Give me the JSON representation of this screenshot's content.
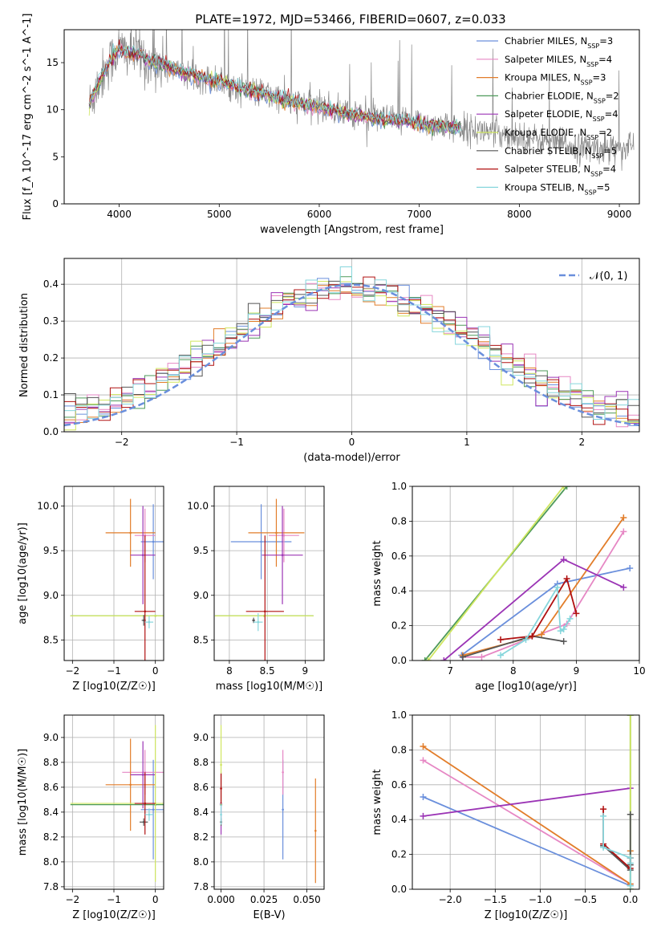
{
  "figure_title": "PLATE=1972, MJD=53466, FIBERID=0607, z=0.033",
  "colors": {
    "Chabrier MILES": "#6a8fdc",
    "Salpeter MILES": "#e687c4",
    "Kroupa MILES": "#e27d2a",
    "Chabrier ELODIE": "#4e9a5a",
    "Salpeter ELODIE": "#9b34b5",
    "Kroupa ELODIE": "#cfe65f",
    "Chabrier STELIB": "#555555",
    "Salpeter STELIB": "#b01010",
    "Kroupa STELIB": "#86d6dc",
    "gauss": "#6a8fdc"
  },
  "chart_data": [
    {
      "id": "spectrum",
      "type": "line",
      "title": "PLATE=1972, MJD=53466, FIBERID=0607, z=0.033",
      "xlabel": "wavelength [Angstrom, rest frame]",
      "ylabel": "Flux [f_λ 10^-17 erg cm^-2 s^-1 A^-1]",
      "xlim": [
        3450,
        9200
      ],
      "ylim": [
        0,
        18.5
      ],
      "xticks": [
        4000,
        5000,
        6000,
        7000,
        8000,
        9000
      ],
      "yticks": [
        0,
        5,
        10,
        15
      ],
      "grid": false,
      "legend_position": "top-right",
      "legend": [
        {
          "label": "Chabrier MILES, N",
          "ssp": "3"
        },
        {
          "label": "Salpeter MILES, N",
          "ssp": "4"
        },
        {
          "label": "Kroupa MILES, N",
          "ssp": "3"
        },
        {
          "label": "Chabrier ELODIE, N",
          "ssp": "2"
        },
        {
          "label": "Salpeter ELODIE, N",
          "ssp": "4"
        },
        {
          "label": "Kroupa ELODIE, N",
          "ssp": "2"
        },
        {
          "label": "Chabrier STELIB, N",
          "ssp": "5"
        },
        {
          "label": "Salpeter STELIB, N",
          "ssp": "4"
        },
        {
          "label": "Kroupa STELIB, N",
          "ssp": "5"
        }
      ],
      "data_curve": {
        "x": [
          3700,
          3800,
          3900,
          4000,
          4100,
          4200,
          4300,
          4400,
          4500,
          4600,
          4700,
          4800,
          4900,
          5000,
          5200,
          5400,
          5600,
          5800,
          6000,
          6200,
          6400,
          6600,
          6800,
          7000,
          7200,
          7400,
          7600,
          7800,
          8000,
          8200,
          8400,
          8600,
          8800,
          9000,
          9150
        ],
        "y": [
          10.5,
          13.0,
          15.0,
          16.5,
          16.0,
          16.0,
          15.0,
          15.0,
          14.5,
          14.0,
          13.8,
          13.6,
          13.2,
          13.0,
          12.3,
          11.8,
          11.2,
          10.7,
          10.3,
          9.8,
          9.4,
          9.0,
          8.8,
          8.6,
          8.3,
          8.0,
          7.8,
          7.5,
          7.2,
          6.8,
          6.4,
          6.0,
          5.9,
          6.0,
          6.2
        ]
      },
      "models_end_wavelength": 7420
    },
    {
      "id": "residual_histogram",
      "type": "step",
      "xlabel": "(data-model)/error",
      "ylabel": "Normed distribution",
      "xlim": [
        -2.5,
        2.5
      ],
      "ylim": [
        0,
        0.47
      ],
      "xticks": [
        -2,
        -1,
        0,
        1,
        2
      ],
      "yticks": [
        0.0,
        0.1,
        0.2,
        0.3,
        0.4
      ],
      "grid": true,
      "legend_position": "top-right",
      "legend": "𝒩(0, 1)",
      "bin_width": 0.1
    },
    {
      "id": "age_vs_Z",
      "type": "errorbar",
      "xlabel": "Z [log10(Z/Z☉)]",
      "ylabel": "age [log10(age/yr)]",
      "xlim": [
        -2.2,
        0.2
      ],
      "ylim": [
        8.27,
        10.22
      ],
      "xticks": [
        -2,
        -1,
        0
      ],
      "yticks": [
        8.5,
        9.0,
        9.5,
        10.0
      ],
      "grid": true,
      "points": [
        {
          "model": "Chabrier MILES",
          "x": -0.05,
          "xerr": 0.3,
          "y": 9.6,
          "yerr": 0.42
        },
        {
          "model": "Salpeter MILES",
          "x": -0.25,
          "xerr": 0.25,
          "y": 9.67,
          "yerr": 0.3
        },
        {
          "model": "Kroupa MILES",
          "x": -0.6,
          "xerr": 0.6,
          "y": 9.7,
          "yerr": 0.38
        },
        {
          "model": "Chabrier ELODIE",
          "x": 0.0,
          "xerr": 2.05,
          "y": 8.77,
          "yerr": 0.0
        },
        {
          "model": "Salpeter ELODIE",
          "x": -0.3,
          "xerr": 0.3,
          "y": 9.45,
          "yerr": 0.55
        },
        {
          "model": "Kroupa ELODIE",
          "x": 0.0,
          "xerr": 2.05,
          "y": 8.77,
          "yerr": 0.0
        },
        {
          "model": "Chabrier STELIB",
          "x": -0.28,
          "xerr": 0.05,
          "y": 8.72,
          "yerr": 0.06
        },
        {
          "model": "Salpeter STELIB",
          "x": -0.25,
          "xerr": 0.25,
          "y": 8.82,
          "yerr": 0.85
        },
        {
          "model": "Kroupa STELIB",
          "x": -0.15,
          "xerr": 0.1,
          "y": 8.7,
          "yerr": 0.07
        }
      ]
    },
    {
      "id": "age_vs_mass",
      "type": "errorbar",
      "xlabel": "mass [log10(M/M☉)]",
      "ylabel": "",
      "xlim": [
        7.8,
        9.25
      ],
      "ylim": [
        8.27,
        10.22
      ],
      "xticks": [
        8.0,
        8.5,
        9.0
      ],
      "yticks": [
        8.5,
        9.0,
        9.5,
        10.0
      ],
      "grid": true,
      "points": [
        {
          "model": "Chabrier MILES",
          "x": 8.42,
          "xerr": 0.4,
          "y": 9.6,
          "yerr": 0.42
        },
        {
          "model": "Salpeter MILES",
          "x": 8.72,
          "xerr": 0.2,
          "y": 9.67,
          "yerr": 0.3
        },
        {
          "model": "Kroupa MILES",
          "x": 8.62,
          "xerr": 0.37,
          "y": 9.7,
          "yerr": 0.38
        },
        {
          "model": "Chabrier ELODIE",
          "x": 8.46,
          "xerr": 0.65,
          "y": 8.77,
          "yerr": 0.0
        },
        {
          "model": "Salpeter ELODIE",
          "x": 8.7,
          "xerr": 0.27,
          "y": 9.45,
          "yerr": 0.55
        },
        {
          "model": "Kroupa ELODIE",
          "x": 8.46,
          "xerr": 0.65,
          "y": 8.77,
          "yerr": 0.0
        },
        {
          "model": "Chabrier STELIB",
          "x": 8.32,
          "xerr": 0.02,
          "y": 8.72,
          "yerr": 0.03
        },
        {
          "model": "Salpeter STELIB",
          "x": 8.47,
          "xerr": 0.25,
          "y": 8.82,
          "yerr": 0.85
        },
        {
          "model": "Kroupa STELIB",
          "x": 8.38,
          "xerr": 0.06,
          "y": 8.7,
          "yerr": 0.1
        }
      ]
    },
    {
      "id": "massweight_vs_age",
      "type": "line",
      "xlabel": "age [log10(age/yr)]",
      "ylabel": "mass weight",
      "xlim": [
        6.4,
        10.0
      ],
      "ylim": [
        0,
        1.0
      ],
      "xticks": [
        7,
        8,
        9,
        10
      ],
      "yticks": [
        0.0,
        0.2,
        0.4,
        0.6,
        0.8,
        1.0
      ],
      "grid": true,
      "series": [
        {
          "name": "Chabrier MILES",
          "x": [
            7.18,
            8.7,
            9.85
          ],
          "y": [
            0.03,
            0.44,
            0.53
          ]
        },
        {
          "name": "Salpeter MILES",
          "x": [
            7.2,
            7.5,
            8.85,
            9.75
          ],
          "y": [
            0.02,
            0.02,
            0.21,
            0.74
          ]
        },
        {
          "name": "Kroupa MILES",
          "x": [
            7.2,
            8.45,
            9.75
          ],
          "y": [
            0.03,
            0.15,
            0.82
          ]
        },
        {
          "name": "Chabrier ELODIE",
          "x": [
            6.6,
            8.85
          ],
          "y": [
            0.0,
            1.0
          ]
        },
        {
          "name": "Salpeter ELODIE",
          "x": [
            6.9,
            8.8,
            9.75
          ],
          "y": [
            0.0,
            0.58,
            0.42
          ]
        },
        {
          "name": "Kroupa ELODIE",
          "x": [
            6.65,
            8.8
          ],
          "y": [
            0.0,
            1.0
          ]
        },
        {
          "name": "Chabrier STELIB",
          "x": [
            7.2,
            8.3,
            8.8
          ],
          "y": [
            0.02,
            0.14,
            0.11
          ]
        },
        {
          "name": "Salpeter STELIB",
          "x": [
            7.8,
            8.3,
            8.85,
            9.0
          ],
          "y": [
            0.12,
            0.14,
            0.47,
            0.27
          ]
        },
        {
          "name": "Kroupa STELIB",
          "x": [
            7.8,
            8.2,
            8.7,
            8.75,
            8.8,
            8.9
          ],
          "y": [
            0.03,
            0.12,
            0.42,
            0.17,
            0.18,
            0.24
          ]
        }
      ]
    },
    {
      "id": "mass_vs_Z",
      "type": "errorbar",
      "xlabel": "Z [log10(Z/Z☉)]",
      "ylabel": "mass [log10(M/M☉)]",
      "xlim": [
        -2.2,
        0.2
      ],
      "ylim": [
        7.78,
        9.18
      ],
      "xticks": [
        -2,
        -1,
        0
      ],
      "yticks": [
        7.8,
        8.0,
        8.2,
        8.4,
        8.6,
        8.8,
        9.0
      ],
      "grid": true,
      "points": [
        {
          "model": "Chabrier MILES",
          "x": -0.05,
          "xerr": 0.3,
          "y": 8.42,
          "yerr": 0.4
        },
        {
          "model": "Salpeter MILES",
          "x": -0.25,
          "xerr": 0.55,
          "y": 8.72,
          "yerr": 0.18
        },
        {
          "model": "Kroupa MILES",
          "x": -0.6,
          "xerr": 0.6,
          "y": 8.62,
          "yerr": 0.37
        },
        {
          "model": "Chabrier ELODIE",
          "x": 0.0,
          "xerr": 2.05,
          "y": 8.46,
          "yerr": 0.0
        },
        {
          "model": "Salpeter ELODIE",
          "x": -0.3,
          "xerr": 0.3,
          "y": 8.7,
          "yerr": 0.27
        },
        {
          "model": "Kroupa ELODIE",
          "x": 0.0,
          "xerr": 2.05,
          "y": 8.47,
          "yerr": 0.63
        },
        {
          "model": "Chabrier STELIB",
          "x": -0.28,
          "xerr": 0.1,
          "y": 8.32,
          "yerr": 0.03
        },
        {
          "model": "Salpeter STELIB",
          "x": -0.25,
          "xerr": 0.25,
          "y": 8.47,
          "yerr": 0.25
        },
        {
          "model": "Kroupa STELIB",
          "x": -0.15,
          "xerr": 0.1,
          "y": 8.38,
          "yerr": 0.05
        }
      ]
    },
    {
      "id": "mass_vs_EBV",
      "type": "errorbar",
      "xlabel": "E(B-V)",
      "ylabel": "",
      "xlim": [
        -0.004,
        0.06
      ],
      "ylim": [
        7.78,
        9.18
      ],
      "xticks": [
        0.0,
        0.025,
        0.05
      ],
      "xticklabels": [
        "0.000",
        "0.025",
        "0.050"
      ],
      "yticks": [
        7.8,
        8.0,
        8.2,
        8.4,
        8.6,
        8.8,
        9.0
      ],
      "grid": true,
      "points": [
        {
          "model": "Chabrier MILES",
          "x": 0.036,
          "xerr": 0.0,
          "y": 8.42,
          "yerr": 0.4
        },
        {
          "model": "Salpeter MILES",
          "x": 0.036,
          "xerr": 0.0,
          "y": 8.72,
          "yerr": 0.18
        },
        {
          "model": "Kroupa MILES",
          "x": 0.055,
          "xerr": 0.0,
          "y": 8.25,
          "yerr": 0.42
        },
        {
          "model": "Chabrier ELODIE",
          "x": 0.0,
          "xerr": 0.0,
          "y": 8.46,
          "yerr": 0.0
        },
        {
          "model": "Salpeter ELODIE",
          "x": 0.0,
          "xerr": 0.0,
          "y": 8.47,
          "yerr": 0.25
        },
        {
          "model": "Kroupa ELODIE",
          "x": 0.0,
          "xerr": 0.0,
          "y": 8.78,
          "yerr": 0.32
        },
        {
          "model": "Chabrier STELIB",
          "x": 0.0,
          "xerr": 0.0,
          "y": 8.32,
          "yerr": 0.03
        },
        {
          "model": "Salpeter STELIB",
          "x": 0.0,
          "xerr": 0.0,
          "y": 8.59,
          "yerr": 0.12
        },
        {
          "model": "Kroupa STELIB",
          "x": 0.0,
          "xerr": 0.0,
          "y": 8.38,
          "yerr": 0.08
        }
      ]
    },
    {
      "id": "massweight_vs_Z",
      "type": "line",
      "xlabel": "Z [log10(Z/Z☉)]",
      "ylabel": "mass weight",
      "xlim": [
        -2.42,
        0.1
      ],
      "ylim": [
        0,
        1.0
      ],
      "xticks": [
        -2.0,
        -1.5,
        -1.0,
        -0.5,
        0.0
      ],
      "xticklabels": [
        "−2.0",
        "−1.5",
        "−1.0",
        "−0.5",
        "0.0"
      ],
      "yticks": [
        0.0,
        0.2,
        0.4,
        0.6,
        0.8,
        1.0
      ],
      "grid": true,
      "series": [
        {
          "name": "Chabrier MILES",
          "x": [
            -2.3,
            0.0
          ],
          "y": [
            0.53,
            0.02
          ]
        },
        {
          "name": "Salpeter MILES",
          "x": [
            -2.3,
            0.0
          ],
          "y": [
            0.74,
            0.03
          ]
        },
        {
          "name": "Kroupa MILES",
          "x": [
            -2.3,
            0.0,
            0.0
          ],
          "y": [
            0.82,
            0.03,
            0.22
          ]
        },
        {
          "name": "Chabrier ELODIE",
          "x": [
            0.0,
            0.0
          ],
          "y": [
            0.0,
            1.0
          ]
        },
        {
          "name": "Salpeter ELODIE",
          "x": [
            -2.3,
            0.0
          ],
          "y": [
            0.42,
            0.58
          ]
        },
        {
          "name": "Kroupa ELODIE",
          "x": [
            0.0,
            0.0
          ],
          "y": [
            0.0,
            1.0
          ]
        },
        {
          "name": "Chabrier STELIB",
          "x": [
            -0.3,
            0.0,
            0.0,
            0.0
          ],
          "y": [
            0.25,
            0.11,
            0.14,
            0.43
          ]
        },
        {
          "name": "Salpeter STELIB",
          "x": [
            -0.3,
            -0.3,
            0.0,
            0.0
          ],
          "y": [
            0.46,
            0.26,
            0.12,
            0.18
          ]
        },
        {
          "name": "Kroupa STELIB",
          "x": [
            -0.3,
            -0.3,
            0.0,
            0.0,
            0.0
          ],
          "y": [
            0.42,
            0.24,
            0.18,
            0.15,
            0.02
          ]
        }
      ]
    }
  ]
}
